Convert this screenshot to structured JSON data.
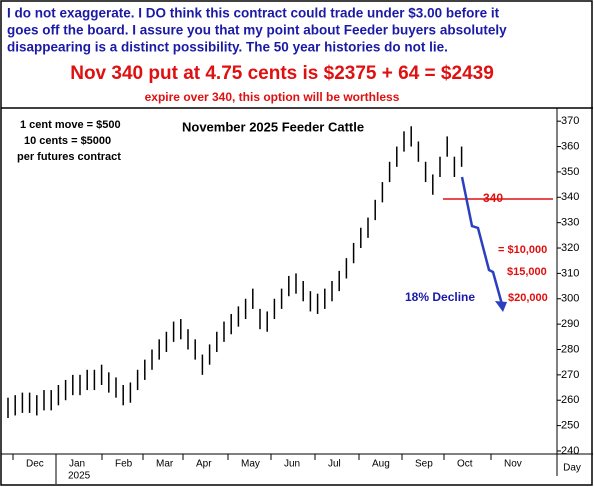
{
  "header": {
    "lines": [
      "I do not exaggerate. I DO think this contract could trade under $3.00 before it",
      "goes off the board. I assure you that my point about Feeder buyers absolutely",
      "disappearing is a distinct possibility. The 50 year histories do not lie."
    ],
    "headline": "Nov 340 put at 4.75 cents is $2375 + 64 = $2439",
    "subline": "expire over 340, this option will be worthless"
  },
  "chart_data": {
    "type": "ohlc",
    "title": "November 2025 Feeder Cattle",
    "notes": [
      "1 cent move = $500",
      "10 cents = $5000",
      "per futures contract"
    ],
    "annotations": {
      "strike": "340",
      "loss1": "= $10,000",
      "loss2": "$15,000",
      "loss3": "$20,000",
      "decline": "18% Decline"
    },
    "high": [
      261,
      262,
      263,
      263,
      262,
      264,
      264,
      266,
      268,
      270,
      270,
      272,
      272,
      274,
      271,
      269,
      266,
      267,
      272,
      276,
      280,
      284,
      287,
      291,
      292,
      288,
      284,
      278,
      282,
      287,
      291,
      294,
      297,
      300,
      304,
      296,
      295,
      300,
      304,
      309,
      310,
      307,
      303,
      302,
      304,
      307,
      311,
      316,
      322,
      328,
      332,
      339,
      346,
      354,
      360,
      366,
      368,
      362,
      354,
      349,
      356,
      364,
      356,
      360
    ],
    "low": [
      253,
      254,
      255,
      255,
      254,
      256,
      256,
      258,
      260,
      262,
      262,
      264,
      264,
      266,
      263,
      261,
      258,
      259,
      264,
      268,
      272,
      276,
      279,
      283,
      284,
      280,
      276,
      270,
      274,
      279,
      283,
      286,
      289,
      292,
      296,
      288,
      287,
      292,
      296,
      301,
      302,
      299,
      295,
      294,
      296,
      299,
      303,
      308,
      314,
      320,
      324,
      331,
      338,
      346,
      352,
      358,
      360,
      354,
      346,
      341,
      348,
      356,
      348,
      352
    ],
    "color": "#000000",
    "ylim": [
      238.8,
      375.2
    ],
    "yticks": [
      240,
      250,
      260,
      270,
      280,
      290,
      300,
      310,
      320,
      330,
      340,
      350,
      360,
      370
    ],
    "months": [
      "Dec",
      "Jan",
      "Feb",
      "Mar",
      "Apr",
      "May",
      "Jun",
      "Jul",
      "Aug",
      "Sep",
      "Oct",
      "Nov"
    ],
    "year": "2025",
    "xlabel": "Day"
  }
}
